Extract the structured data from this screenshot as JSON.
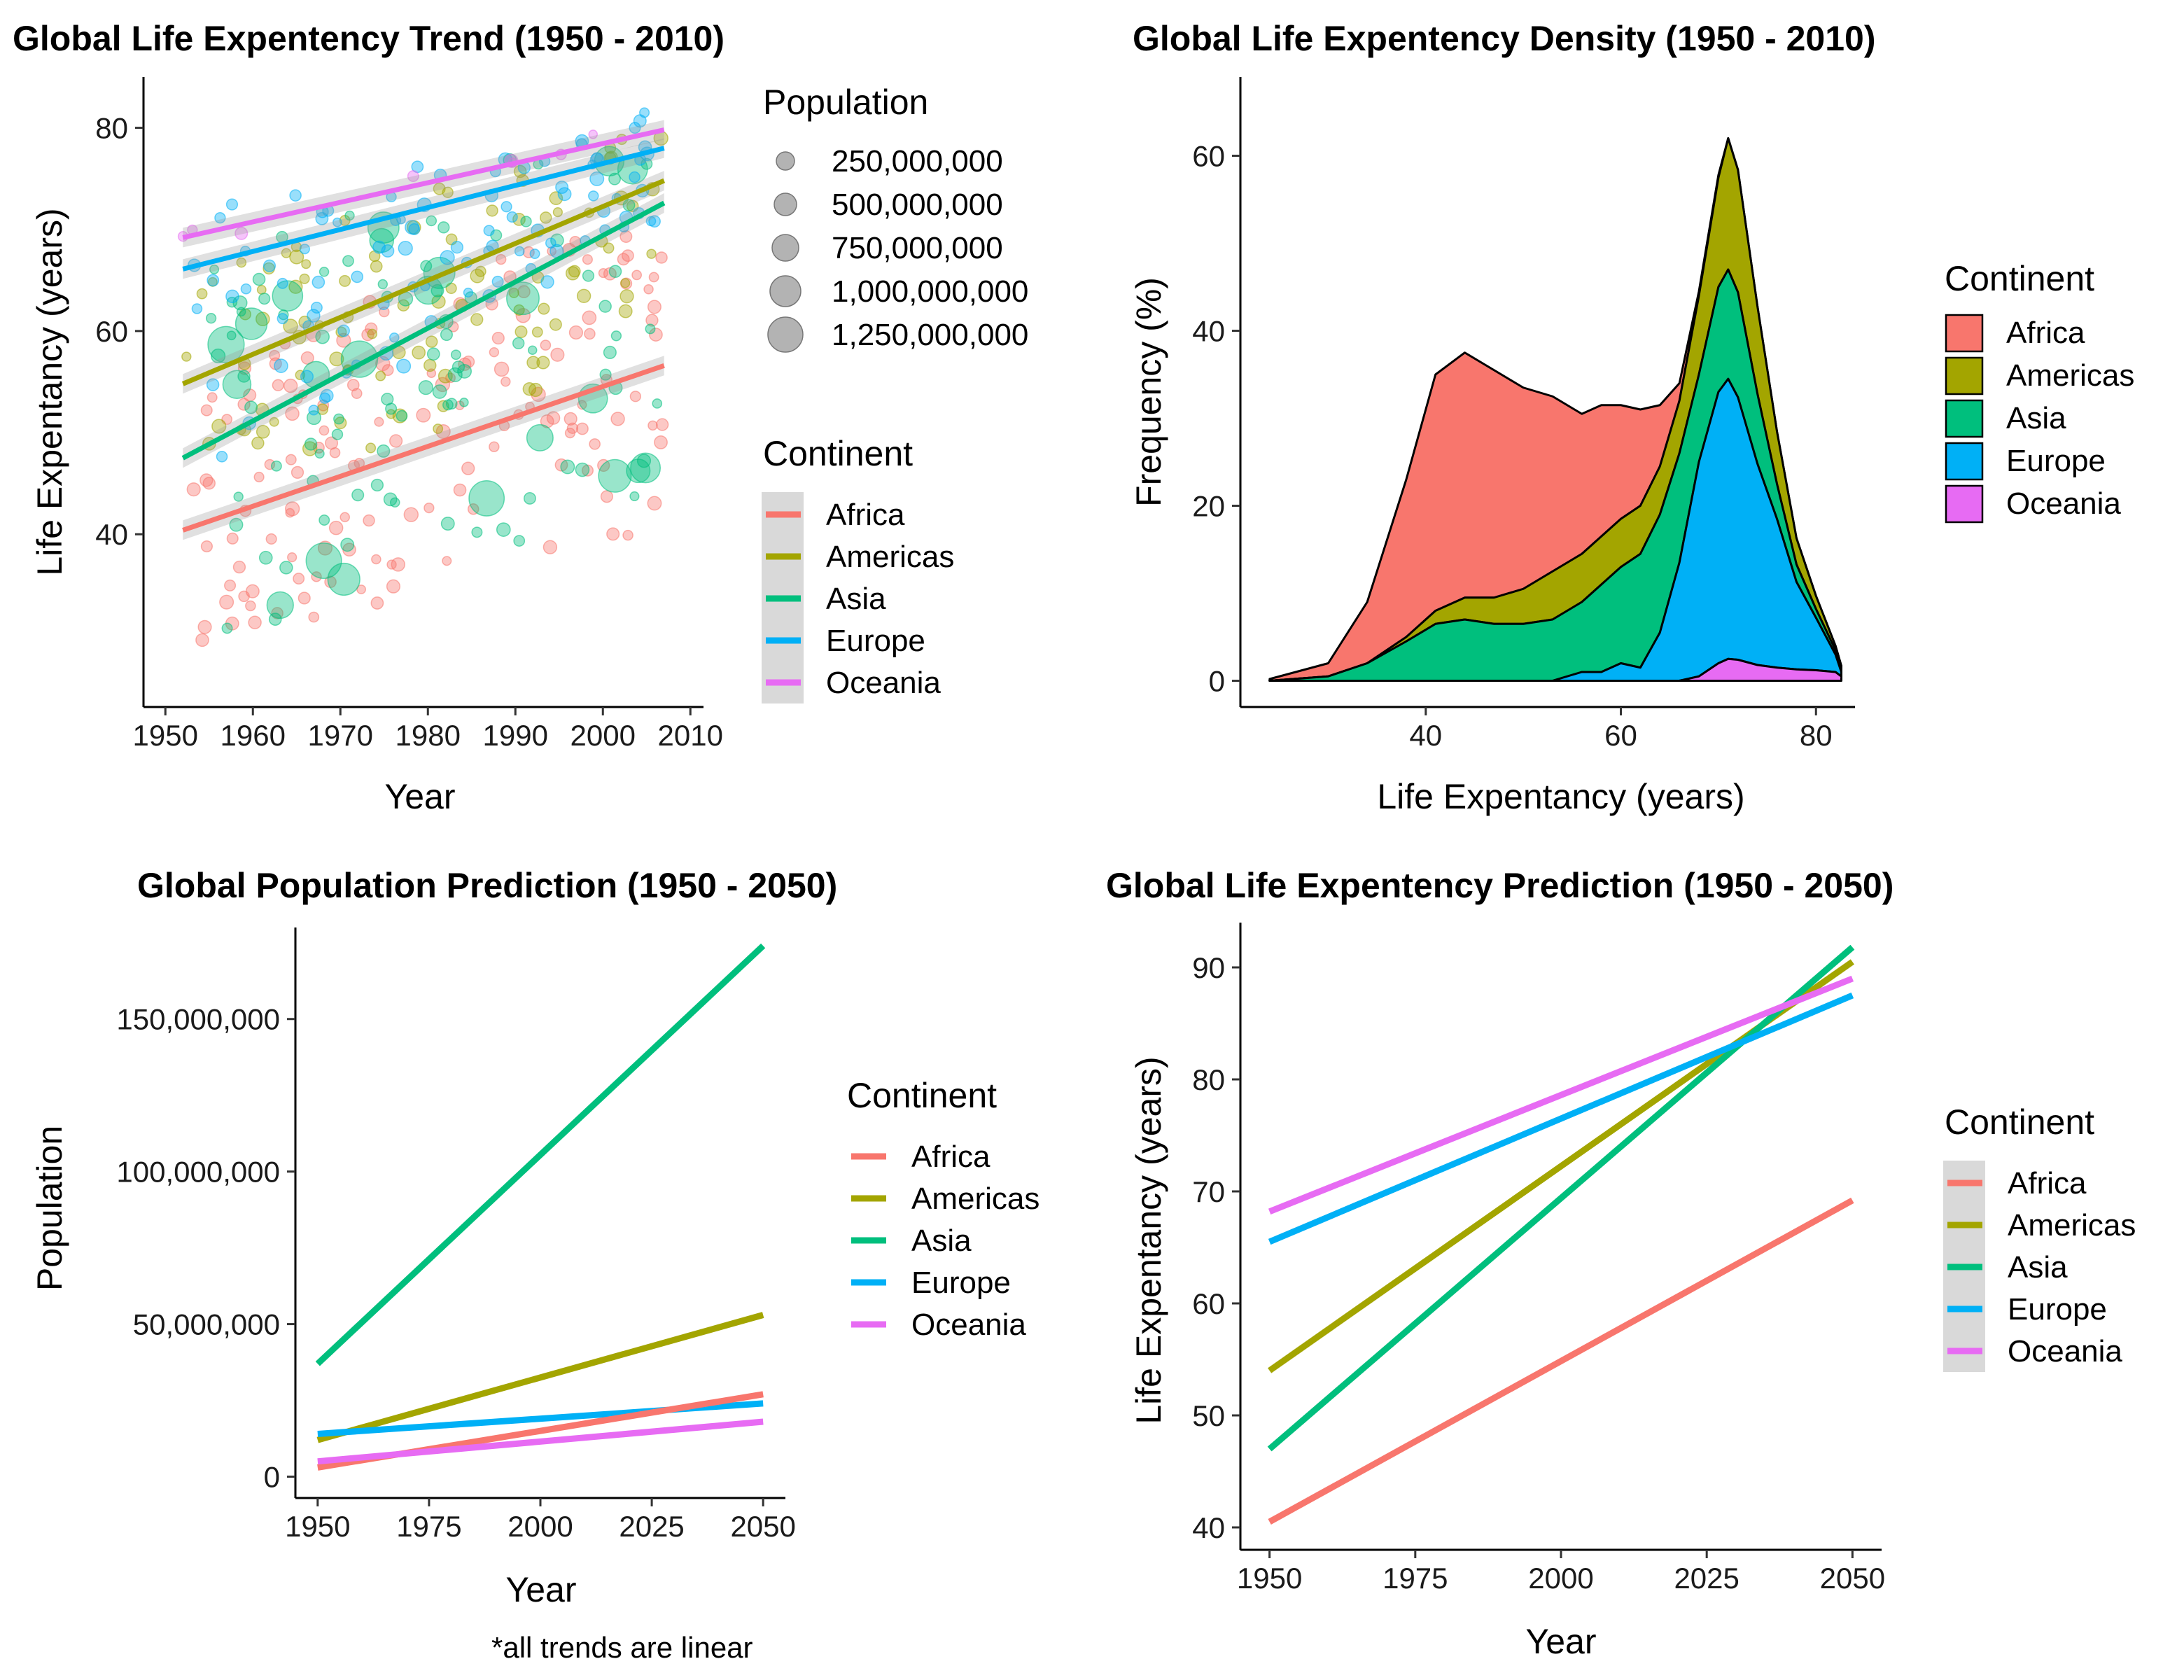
{
  "colors": {
    "Africa": "#F8766D",
    "Americas": "#A3A500",
    "Asia": "#00BF7D",
    "Europe": "#00B0F6",
    "Oceania": "#E76BF3"
  },
  "continents": [
    "Africa",
    "Americas",
    "Asia",
    "Europe",
    "Oceania"
  ],
  "note": "*all trends are linear",
  "chart_data": [
    {
      "id": "trend",
      "type": "scatter",
      "title": "Global Life Expentency Trend (1950 - 2010)",
      "xlabel": "Year",
      "ylabel": "Life Expentancy (years)",
      "xlim": [
        1947.5,
        2011.5
      ],
      "ylim": [
        23,
        85
      ],
      "xticks": [
        1950,
        1960,
        1970,
        1980,
        1990,
        2000,
        2010
      ],
      "yticks": [
        40,
        60,
        80
      ],
      "legend_position": "right",
      "size_legend": {
        "title": "Population",
        "values": [
          250000000,
          500000000,
          750000000,
          1000000000,
          1250000000
        ],
        "labels": [
          "250,000,000",
          "500,000,000",
          "750,000,000",
          "1,000,000,000",
          "1,250,000,000"
        ]
      },
      "color_legend_title": "Continent",
      "point_years": [
        1952,
        2007
      ],
      "point_life_range": {
        "Africa": [
          [
            28,
            58
          ],
          [
            40,
            72
          ]
        ],
        "Americas": [
          [
            38,
            68
          ],
          [
            60,
            80
          ]
        ],
        "Asia": [
          [
            28,
            66
          ],
          [
            44,
            82
          ]
        ],
        "Europe": [
          [
            44,
            72
          ],
          [
            71,
            82
          ]
        ],
        "Oceania": [
          [
            68,
            70
          ],
          [
            79,
            81
          ]
        ]
      },
      "series": [
        {
          "name": "Africa",
          "x": [
            1952,
            2007
          ],
          "y": [
            40.4,
            56.6
          ]
        },
        {
          "name": "Americas",
          "x": [
            1952,
            2007
          ],
          "y": [
            54.8,
            74.8
          ]
        },
        {
          "name": "Asia",
          "x": [
            1952,
            2007
          ],
          "y": [
            47.5,
            72.6
          ]
        },
        {
          "name": "Europe",
          "x": [
            1952,
            2007
          ],
          "y": [
            66.1,
            78.0
          ]
        },
        {
          "name": "Oceania",
          "x": [
            1952,
            2007
          ],
          "y": [
            69.2,
            79.8
          ]
        }
      ]
    },
    {
      "id": "density",
      "type": "area",
      "stacked": true,
      "title": "Global Life Expentency Density (1950 - 2010)",
      "xlabel": "Life Expentancy (years)",
      "ylabel": "Frequency (%)",
      "xlim": [
        21,
        84
      ],
      "ylim": [
        -3,
        69
      ],
      "xticks": [
        40,
        60,
        80
      ],
      "yticks": [
        0,
        20,
        40,
        60
      ],
      "legend_title": "Continent",
      "legend_position": "right",
      "x": [
        24,
        30,
        34,
        38,
        41,
        44,
        47,
        50,
        53,
        56,
        58,
        60,
        62,
        64,
        66,
        68,
        70,
        71,
        72,
        74,
        76,
        78,
        80,
        82,
        82.6
      ],
      "series": [
        {
          "name": "Oceania",
          "values": [
            0,
            0,
            0,
            0,
            0,
            0,
            0,
            0,
            0,
            0,
            0,
            0,
            0,
            0,
            0,
            0.5,
            2.0,
            2.5,
            2.4,
            1.8,
            1.5,
            1.3,
            1.2,
            1.0,
            0.5
          ]
        },
        {
          "name": "Europe",
          "values": [
            0,
            0,
            0,
            0,
            0,
            0,
            0,
            0,
            0,
            1,
            1,
            2,
            1.5,
            5.5,
            13.5,
            24.5,
            31,
            32,
            30,
            23,
            17,
            10,
            6,
            2,
            0.5
          ]
        },
        {
          "name": "Asia",
          "values": [
            0,
            0.5,
            2,
            4.5,
            6.5,
            7,
            6.5,
            6.5,
            7,
            8,
            10,
            11,
            13,
            13.5,
            12.5,
            10,
            12,
            12.5,
            12,
            8,
            4,
            2,
            1,
            0.5,
            0.5
          ]
        },
        {
          "name": "Americas",
          "values": [
            0,
            0,
            0,
            0.5,
            1.5,
            2.5,
            3,
            4,
            5.5,
            5.5,
            5.5,
            5.5,
            5.5,
            5.5,
            6,
            9,
            12.5,
            15,
            14,
            10,
            6,
            3,
            1.5,
            0.5,
            0.2
          ]
        },
        {
          "name": "Africa",
          "values": [
            0.2,
            1.5,
            7,
            18,
            27,
            28,
            26,
            23,
            20,
            16,
            15,
            13,
            11,
            7,
            2,
            0.5,
            0.3,
            0,
            0,
            0,
            0,
            0,
            0,
            0,
            0
          ]
        }
      ]
    },
    {
      "id": "pop_pred",
      "type": "line",
      "title": "Global Population Prediction (1950 - 2050)",
      "xlabel": "Year",
      "ylabel": "Population",
      "xlim": [
        1945,
        2055
      ],
      "ylim": [
        -7000000,
        180000000
      ],
      "xticks": [
        1950,
        1975,
        2000,
        2025,
        2050
      ],
      "yticks": [
        0,
        50000000,
        100000000,
        150000000
      ],
      "ytick_labels": [
        "0",
        "50,000,000",
        "100,000,000",
        "150,000,000"
      ],
      "legend_title": "Continent",
      "legend_position": "right",
      "series": [
        {
          "name": "Asia",
          "x": [
            1950,
            2050
          ],
          "y": [
            37000000,
            174000000
          ]
        },
        {
          "name": "Americas",
          "x": [
            1950,
            2050
          ],
          "y": [
            12000000,
            53000000
          ]
        },
        {
          "name": "Europe",
          "x": [
            1950,
            2050
          ],
          "y": [
            14000000,
            24000000
          ]
        },
        {
          "name": "Africa",
          "x": [
            1950,
            2050
          ],
          "y": [
            3000000,
            27000000
          ]
        },
        {
          "name": "Oceania",
          "x": [
            1950,
            2050
          ],
          "y": [
            5000000,
            18000000
          ]
        }
      ]
    },
    {
      "id": "life_pred",
      "type": "line",
      "title": "Global Life Expentency Prediction (1950 - 2050)",
      "xlabel": "Year",
      "ylabel": "Life Expentancy (years)",
      "xlim": [
        1945,
        2055
      ],
      "ylim": [
        38,
        94
      ],
      "xticks": [
        1950,
        1975,
        2000,
        2025,
        2050
      ],
      "yticks": [
        40,
        50,
        60,
        70,
        80,
        90
      ],
      "legend_title": "Continent",
      "legend_position": "right",
      "series": [
        {
          "name": "Africa",
          "x": [
            1950,
            2050
          ],
          "y": [
            40.5,
            69.2
          ]
        },
        {
          "name": "Americas",
          "x": [
            1950,
            2050
          ],
          "y": [
            54.0,
            90.5
          ]
        },
        {
          "name": "Asia",
          "x": [
            1950,
            2050
          ],
          "y": [
            47.0,
            91.8
          ]
        },
        {
          "name": "Europe",
          "x": [
            1950,
            2050
          ],
          "y": [
            65.5,
            87.5
          ]
        },
        {
          "name": "Oceania",
          "x": [
            1950,
            2050
          ],
          "y": [
            68.2,
            89.0
          ]
        }
      ]
    }
  ]
}
